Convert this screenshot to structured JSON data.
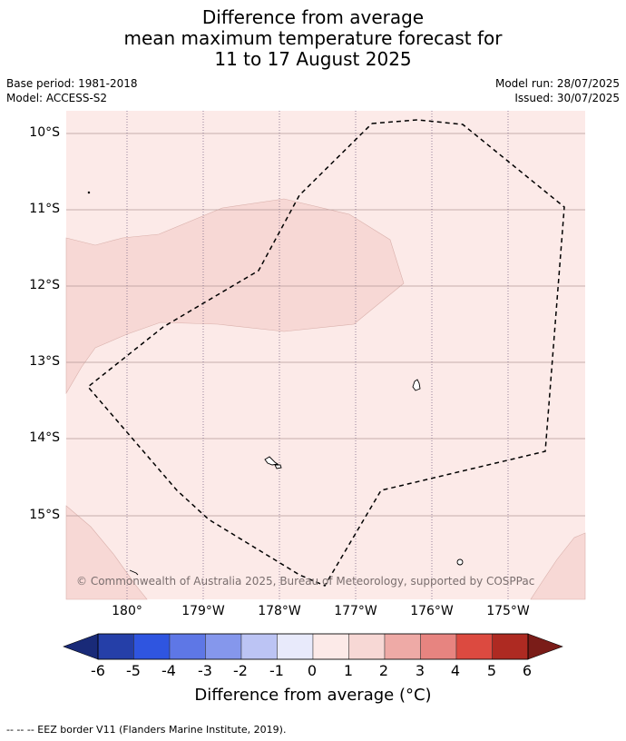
{
  "title": {
    "line1": "Difference from average",
    "line2": "mean maximum temperature forecast for",
    "line3": "11 to 17 August 2025"
  },
  "meta": {
    "base_period": "Base period: 1981-2018",
    "model": "Model: ACCESS-S2",
    "model_run": "Model run: 28/07/2025",
    "issued": "Issued: 30/07/2025"
  },
  "map": {
    "latitude_labels": [
      "10°S",
      "11°S",
      "12°S",
      "13°S",
      "14°S",
      "15°S"
    ],
    "longitude_labels": [
      "180°",
      "179°W",
      "178°W",
      "177°W",
      "176°W",
      "175°W"
    ],
    "lat_range": [
      -16.13,
      -9.7
    ],
    "lon_range": [
      -180.8,
      -173.98
    ],
    "background_color": "#fceae8",
    "anomaly_region_color": "#f7d8d5",
    "copyright": "© Commonwealth of Australia 2025, Bureau of Meteorology, supported by COSPPac",
    "eez_line_style": "dashed"
  },
  "colorbar": {
    "ticks": [
      "-6",
      "-5",
      "-4",
      "-3",
      "-2",
      "-1",
      "0",
      "1",
      "2",
      "3",
      "4",
      "5",
      "6"
    ],
    "colors": [
      "#253fa8",
      "#2f55e0",
      "#5e77e6",
      "#8597ec",
      "#bcc4f4",
      "#e8eafb",
      "#fceae8",
      "#f7d8d5",
      "#eeaaa6",
      "#e78480",
      "#dc4a40",
      "#ae2a22"
    ],
    "under_color": "#192a78",
    "over_color": "#7a1c18",
    "label": "Difference from average (°C)"
  },
  "footnote": "--  --  -- EEZ border V11 (Flanders Marine Institute, 2019)."
}
